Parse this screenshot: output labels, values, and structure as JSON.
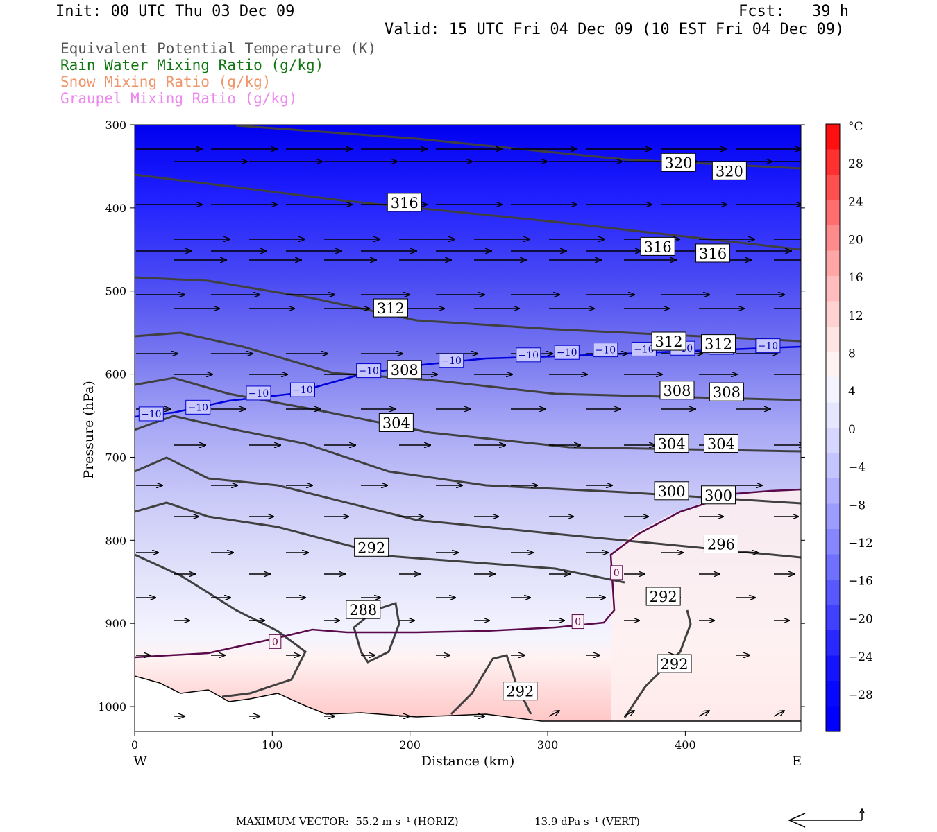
{
  "header": {
    "init": "Init: 00 UTC Thu 03 Dec 09",
    "fcst": "Fcst:   39 h",
    "valid": "Valid: 15 UTC Fri 04 Dec 09 (10 EST Fri 04 Dec 09)"
  },
  "legend": [
    {
      "text": "Equivalent Potential Temperature (K)",
      "color": "#555555"
    },
    {
      "text": "Rain Water Mixing Ratio (g/kg)",
      "color": "#117711"
    },
    {
      "text": "Snow Mixing Ratio (g/kg)",
      "color": "#f0956a"
    },
    {
      "text": "Graupel Mixing Ratio (g/kg)",
      "color": "#ee88ee"
    }
  ],
  "footer": {
    "max_vector": "MAXIMUM VECTOR:  55.2 m s⁻¹ (HORIZ)",
    "vert": "13.9 dPa s⁻¹ (VERT)"
  },
  "chart_data": {
    "type": "heatmap",
    "xlabel": "Distance (km)",
    "ylabel": "Pressure (hPa)",
    "xlim": [
      0,
      484
    ],
    "ylim": [
      1030,
      300
    ],
    "x_ticks": [
      "0",
      "100",
      "200",
      "300",
      "400"
    ],
    "y_ticks": [
      "300",
      "400",
      "500",
      "600",
      "700",
      "800",
      "900",
      "1000"
    ],
    "x_end_labels": {
      "left": "W",
      "right": "E"
    },
    "colorbar": {
      "unit": "°C",
      "labels": [
        "28",
        "24",
        "20",
        "16",
        "12",
        "8",
        "4",
        "0",
        "−4",
        "−8",
        "−12",
        "−16",
        "−20",
        "−24",
        "−28"
      ],
      "colors": [
        "#ff1010",
        "#ff3030",
        "#ff5050",
        "#ff6e6e",
        "#ff8c8c",
        "#ffa6a6",
        "#ffbdbd",
        "#ffd2d2",
        "#ffe4e4",
        "#fff2f2",
        "#f4f4ff",
        "#e6e6ff",
        "#d6d6ff",
        "#c4c4ff",
        "#b0b0ff",
        "#9c9cff",
        "#8686ff",
        "#7070ff",
        "#5858ff",
        "#4040ff",
        "#2828ff",
        "#1414ff",
        "#0808ff",
        "#0000ff"
      ]
    },
    "theta_e_labels": [
      {
        "text": "320",
        "x": 395,
        "p": 352
      },
      {
        "text": "320",
        "x": 432,
        "p": 362
      },
      {
        "text": "316",
        "x": 196,
        "p": 400
      },
      {
        "text": "316",
        "x": 380,
        "p": 453
      },
      {
        "text": "316",
        "x": 420,
        "p": 461
      },
      {
        "text": "312",
        "x": 186,
        "p": 527
      },
      {
        "text": "312",
        "x": 388,
        "p": 567
      },
      {
        "text": "312",
        "x": 424,
        "p": 570
      },
      {
        "text": "308",
        "x": 196,
        "p": 601
      },
      {
        "text": "308",
        "x": 394,
        "p": 626
      },
      {
        "text": "308",
        "x": 430,
        "p": 628
      },
      {
        "text": "304",
        "x": 190,
        "p": 665
      },
      {
        "text": "304",
        "x": 390,
        "p": 690
      },
      {
        "text": "304",
        "x": 426,
        "p": 690
      },
      {
        "text": "300",
        "x": 390,
        "p": 747
      },
      {
        "text": "300",
        "x": 424,
        "p": 752
      },
      {
        "text": "296",
        "x": 426,
        "p": 811
      },
      {
        "text": "292",
        "x": 172,
        "p": 815
      },
      {
        "text": "292",
        "x": 384,
        "p": 874
      },
      {
        "text": "292",
        "x": 392,
        "p": 955
      },
      {
        "text": "292",
        "x": 280,
        "p": 988
      },
      {
        "text": "288",
        "x": 166,
        "p": 890
      }
    ],
    "temp_labels": [
      {
        "text": "−10",
        "x": 12,
        "p": 652
      },
      {
        "text": "−10",
        "x": 46,
        "p": 644
      },
      {
        "text": "−10",
        "x": 90,
        "p": 627
      },
      {
        "text": "−10",
        "x": 122,
        "p": 623
      },
      {
        "text": "−10",
        "x": 170,
        "p": 600
      },
      {
        "text": "−10",
        "x": 230,
        "p": 588
      },
      {
        "text": "−10",
        "x": 286,
        "p": 581
      },
      {
        "text": "−10",
        "x": 314,
        "p": 578
      },
      {
        "text": "−10",
        "x": 342,
        "p": 575
      },
      {
        "text": "−10",
        "x": 370,
        "p": 574
      },
      {
        "text": "−10",
        "x": 398,
        "p": 573
      },
      {
        "text": "−10",
        "x": 426,
        "p": 572
      },
      {
        "text": "−10",
        "x": 460,
        "p": 570
      }
    ],
    "zero_labels": [
      {
        "text": "0",
        "x": 102,
        "p": 926
      },
      {
        "text": "0",
        "x": 322,
        "p": 902
      },
      {
        "text": "0",
        "x": 350,
        "p": 843
      }
    ]
  }
}
